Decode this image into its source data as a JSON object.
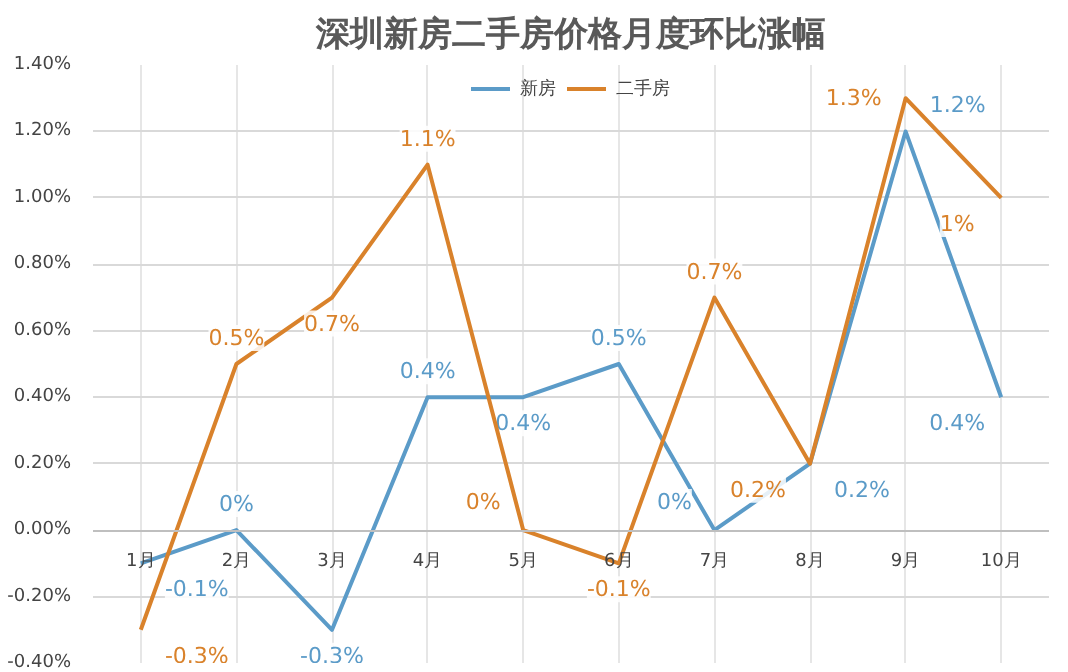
{
  "chart_data": {
    "type": "line",
    "title": "深圳新房二手房价格月度环比涨幅",
    "categories": [
      "1月",
      "2月",
      "3月",
      "4月",
      "5月",
      "6月",
      "7月",
      "8月",
      "9月",
      "10月"
    ],
    "series": [
      {
        "name": "新房",
        "color": "#5b9bc8",
        "values": [
          -0.1,
          0,
          -0.3,
          0.4,
          0.4,
          0.5,
          0,
          0.2,
          1.2,
          0.4
        ],
        "value_labels": [
          "-0.1%",
          "0%",
          "-0.3%",
          "0.4%",
          "0.4%",
          "0.5%",
          "0%",
          "0.2%",
          "1.2%",
          "0.4%"
        ]
      },
      {
        "name": "二手房",
        "color": "#d9822b",
        "values": [
          -0.3,
          0.5,
          0.7,
          1.1,
          0,
          -0.1,
          0.7,
          0.2,
          1.3,
          1.0
        ],
        "value_labels": [
          "-0.3%",
          "0.5%",
          "0.7%",
          "1.1%",
          "0%",
          "-0.1%",
          "0.7%",
          "0.2%",
          "1.3%",
          "1%"
        ]
      }
    ],
    "ylim": [
      -0.4,
      1.4
    ],
    "yticks": [
      {
        "value": -0.4,
        "label": "-0.40%"
      },
      {
        "value": -0.2,
        "label": "-0.20%"
      },
      {
        "value": 0,
        "label": "0.00%"
      },
      {
        "value": 0.2,
        "label": "0.20%"
      },
      {
        "value": 0.4,
        "label": "0.40%"
      },
      {
        "value": 0.6,
        "label": "0.60%"
      },
      {
        "value": 0.8,
        "label": "0.80%"
      },
      {
        "value": 1.0,
        "label": "1.00%"
      },
      {
        "value": 1.2,
        "label": "1.20%"
      },
      {
        "value": 1.4,
        "label": "1.40%"
      }
    ],
    "grid": true,
    "legend": "top",
    "marker": "none",
    "line_style": "solid"
  }
}
